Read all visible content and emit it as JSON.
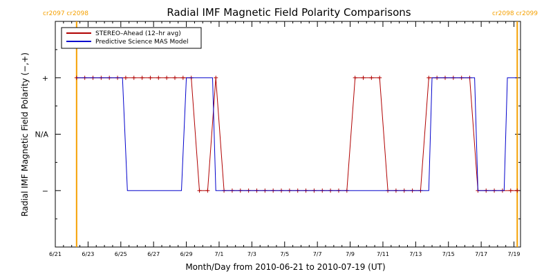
{
  "chart_data": {
    "type": "line",
    "title": "Radial IMF Magnetic Field Polarity Comparisons",
    "xlabel": "Month/Day from 2010-06-21 to 2010-07-19 (UT)",
    "ylabel": "Radial IMF Magnetic Field Polarity (−,+)",
    "x_start_date": "2010-06-21",
    "xlim": [
      0,
      28.4
    ],
    "ylim": [
      -2,
      2
    ],
    "x_ticks": [
      {
        "day": 0,
        "label": "6/21"
      },
      {
        "day": 2,
        "label": "6/23"
      },
      {
        "day": 4,
        "label": "6/25"
      },
      {
        "day": 6,
        "label": "6/27"
      },
      {
        "day": 8,
        "label": "6/29"
      },
      {
        "day": 10,
        "label": "7/1"
      },
      {
        "day": 12,
        "label": "7/3"
      },
      {
        "day": 14,
        "label": "7/5"
      },
      {
        "day": 16,
        "label": "7/7"
      },
      {
        "day": 18,
        "label": "7/9"
      },
      {
        "day": 20,
        "label": "7/11"
      },
      {
        "day": 22,
        "label": "7/13"
      },
      {
        "day": 24,
        "label": "7/15"
      },
      {
        "day": 26,
        "label": "7/17"
      },
      {
        "day": 28,
        "label": "7/19"
      }
    ],
    "y_ticks": [
      {
        "value": 1,
        "label": "+"
      },
      {
        "value": 0,
        "label": "N/A"
      },
      {
        "value": -1,
        "label": "−"
      }
    ],
    "legend_position": "top-left",
    "markers": [
      {
        "x": 1.3,
        "label": "cr2097 cr2098",
        "color": "#f5a000",
        "label_side": "left"
      },
      {
        "x": 28.2,
        "label": "cr2098 cr2099",
        "color": "#f5a000",
        "label_side": "right"
      }
    ],
    "series": [
      {
        "name": "STEREO–Ahead (12–hr avg)",
        "color": "#b00000",
        "show_markers": true,
        "x": [
          1.3,
          1.8,
          2.3,
          2.8,
          3.3,
          3.8,
          4.3,
          4.8,
          5.3,
          5.8,
          6.3,
          6.8,
          7.3,
          7.8,
          8.3,
          8.8,
          9.3,
          9.8,
          10.3,
          10.8,
          11.3,
          11.8,
          12.3,
          12.8,
          13.3,
          13.8,
          14.3,
          14.8,
          15.3,
          15.8,
          16.3,
          16.8,
          17.3,
          17.8,
          18.3,
          18.8,
          19.3,
          19.8,
          20.3,
          20.8,
          21.3,
          21.8,
          22.3,
          22.8,
          23.3,
          23.8,
          24.3,
          24.8,
          25.3,
          25.8,
          26.3,
          26.8,
          27.3,
          27.8,
          28.2
        ],
        "y": [
          1,
          1,
          1,
          1,
          1,
          1,
          1,
          1,
          1,
          1,
          1,
          1,
          1,
          1,
          1,
          -1,
          -1,
          1,
          -1,
          -1,
          -1,
          -1,
          -1,
          -1,
          -1,
          -1,
          -1,
          -1,
          -1,
          -1,
          -1,
          -1,
          -1,
          -1,
          1,
          1,
          1,
          1,
          -1,
          -1,
          -1,
          -1,
          -1,
          1,
          1,
          1,
          1,
          1,
          1,
          -1,
          -1,
          -1,
          -1,
          -1,
          -1
        ]
      },
      {
        "name": "Predictive Science MAS Model",
        "color": "#0000cc",
        "show_markers": false,
        "x": [
          1.3,
          4.1,
          4.4,
          7.7,
          8.0,
          8.6,
          9.6,
          9.8,
          22.8,
          23.0,
          25.6,
          25.8,
          27.4,
          27.6,
          28.2
        ],
        "y": [
          1,
          1,
          -1,
          -1,
          1,
          1,
          1,
          -1,
          -1,
          1,
          1,
          -1,
          -1,
          1,
          1
        ]
      }
    ]
  }
}
